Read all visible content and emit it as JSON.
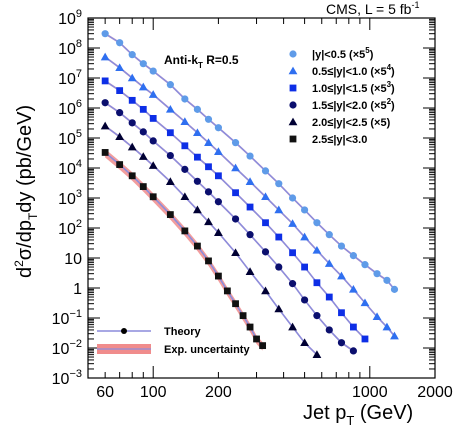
{
  "chart_data": {
    "type": "scatter",
    "experiment_label": "CMS, L = 5 fb",
    "experiment_label_sup": "-1",
    "annotation": "Anti-k",
    "annotation_sub": "T",
    "annotation_tail": " R=0.5",
    "xlabel": "Jet p",
    "xlabel_sub": "T",
    "xlabel_tail": " (GeV)",
    "ylabel": "d²σ/dp_Tdy (pb/GeV)",
    "x_log": true,
    "y_log": true,
    "xlim": [
      50,
      2000
    ],
    "ylim": [
      0.001,
      1000000000
    ],
    "x_ticks": [
      {
        "value": 60,
        "label": "60"
      },
      {
        "value": 100,
        "label": "100"
      },
      {
        "value": 200,
        "label": "200"
      },
      {
        "value": 1000,
        "label": "1000"
      },
      {
        "value": 2000,
        "label": "2000"
      }
    ],
    "y_ticks": [
      {
        "value": 0.001,
        "base": "10",
        "exp": "−3"
      },
      {
        "value": 0.01,
        "base": "10",
        "exp": "−2"
      },
      {
        "value": 0.1,
        "base": "10",
        "exp": "−1"
      },
      {
        "value": 1,
        "base": "1",
        "exp": ""
      },
      {
        "value": 10,
        "base": "10",
        "exp": ""
      },
      {
        "value": 100,
        "base": "10",
        "exp": "2"
      },
      {
        "value": 1000,
        "base": "10",
        "exp": "3"
      },
      {
        "value": 10000,
        "base": "10",
        "exp": "4"
      },
      {
        "value": 100000,
        "base": "10",
        "exp": "5"
      },
      {
        "value": 1000000,
        "base": "10",
        "exp": "6"
      },
      {
        "value": 10000000,
        "base": "10",
        "exp": "7"
      },
      {
        "value": 100000000,
        "base": "10",
        "exp": "8"
      },
      {
        "value": 1000000000,
        "base": "10",
        "exp": "9"
      }
    ],
    "theory_color": "#8c8cdc",
    "uncertainty_color": "#f08c8c",
    "series": [
      {
        "name": "|y|<0.5 (×5",
        "name_sup": "5",
        "name_tail": ")",
        "marker": "circle",
        "color": "#5f9be8",
        "x": [
          60,
          70,
          80,
          90,
          100,
          120,
          140,
          160,
          180,
          200,
          240,
          280,
          330,
          380,
          440,
          500,
          570,
          650,
          740,
          840,
          950,
          1080,
          1200,
          1300
        ],
        "y": [
          300000000,
          150000000,
          60000000,
          30000000,
          17000000,
          6000000,
          2000000,
          900000,
          420000,
          220000,
          70000,
          25000,
          8000,
          3000,
          1000,
          400,
          150,
          60,
          25,
          12,
          6,
          3,
          1.8,
          0.9
        ]
      },
      {
        "name": "0.5≤|y|<1.0 (×5",
        "name_sup": "4",
        "name_tail": ")",
        "marker": "triangle",
        "color": "#2f6ff0",
        "x": [
          60,
          70,
          80,
          90,
          100,
          120,
          140,
          160,
          180,
          200,
          240,
          280,
          330,
          380,
          440,
          500,
          570,
          650,
          740,
          840,
          950,
          1080,
          1200,
          1300
        ],
        "y": [
          50000000,
          22000000,
          10000000,
          5000000,
          2800000,
          900000,
          350000,
          150000,
          70000,
          35000,
          10000,
          3500,
          1100,
          400,
          140,
          50,
          18,
          6.5,
          2.5,
          0.9,
          0.32,
          0.11,
          0.05,
          0.025
        ]
      },
      {
        "name": "1.0≤|y|<1.5 (×5",
        "name_sup": "3",
        "name_tail": ")",
        "marker": "square",
        "color": "#0d2ee6",
        "x": [
          60,
          70,
          80,
          90,
          100,
          120,
          140,
          160,
          180,
          200,
          240,
          280,
          330,
          380,
          440,
          500,
          570,
          650,
          740,
          840,
          950
        ],
        "y": [
          8000000,
          3800000,
          1800000,
          900000,
          450000,
          150000,
          55000,
          23000,
          11000,
          5500,
          1500,
          500,
          150,
          50,
          15,
          5,
          1.5,
          0.5,
          0.15,
          0.05,
          0.02
        ]
      },
      {
        "name": "1.5≤|y|<2.0 (×5",
        "name_sup": "2",
        "name_tail": ")",
        "marker": "circle",
        "color": "#0b0f6e",
        "x": [
          60,
          70,
          80,
          90,
          100,
          120,
          140,
          160,
          180,
          200,
          240,
          280,
          330,
          380,
          440,
          500,
          570,
          650,
          740,
          840
        ],
        "y": [
          1500000,
          700000,
          320000,
          160000,
          80000,
          26000,
          9000,
          3600,
          1600,
          750,
          200,
          60,
          16,
          5,
          1.4,
          0.4,
          0.12,
          0.04,
          0.015,
          0.008
        ]
      },
      {
        "name": "2.0≤|y|<2.5 (×5)",
        "name_sup": "",
        "name_tail": "",
        "marker": "triangle",
        "color": "#000033",
        "x": [
          60,
          70,
          80,
          90,
          100,
          120,
          140,
          160,
          180,
          200,
          240,
          280,
          330,
          380,
          440,
          500,
          570
        ],
        "y": [
          250000,
          110000,
          50000,
          24000,
          12000,
          3500,
          1100,
          400,
          160,
          70,
          15,
          3.5,
          0.8,
          0.2,
          0.05,
          0.015,
          0.006
        ]
      },
      {
        "name": "2.5≤|y|<3.0",
        "name_sup": "",
        "name_tail": "",
        "marker": "square",
        "color": "#111111",
        "x": [
          60,
          70,
          80,
          90,
          100,
          120,
          140,
          160,
          180,
          200,
          220,
          240,
          260,
          280,
          300,
          320
        ],
        "y": [
          33000,
          13000,
          5500,
          2400,
          1100,
          280,
          80,
          25,
          8,
          2.5,
          0.8,
          0.3,
          0.12,
          0.05,
          0.02,
          0.012
        ]
      }
    ],
    "legend_bottom": [
      {
        "label": "Theory",
        "style": "theory"
      },
      {
        "label": "Exp. uncertainty",
        "style": "band"
      }
    ]
  }
}
